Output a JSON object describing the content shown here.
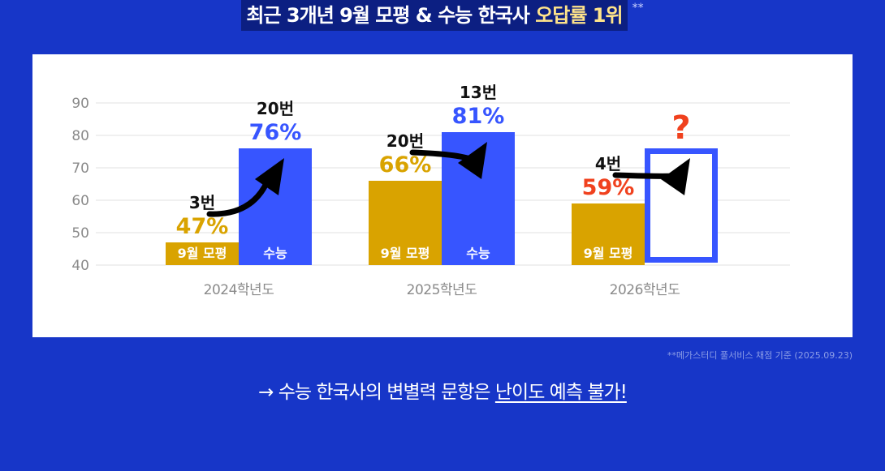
{
  "header": {
    "title_main": "최근 3개년 9월 모평 & 수능 한국사 ",
    "title_highlight": "오답률 1위",
    "footnote_mark": "**"
  },
  "chart_data": {
    "type": "bar",
    "categories": [
      "2024학년도",
      "2025학년도",
      "2026학년도"
    ],
    "series": [
      {
        "name": "9월 모평",
        "color": "#d9a300",
        "values": [
          47,
          66,
          59
        ],
        "question_numbers": [
          "3번",
          "20번",
          "4번"
        ]
      },
      {
        "name": "수능",
        "color": "#3755ff",
        "values": [
          76,
          81,
          null
        ],
        "question_numbers": [
          "20번",
          "13번",
          null
        ]
      }
    ],
    "value_labels": [
      [
        "47%",
        "76%"
      ],
      [
        "66%",
        "81%"
      ],
      [
        "59%",
        "?"
      ]
    ],
    "highlight_color": "#f0411e",
    "yticks": [
      40,
      50,
      60,
      70,
      80,
      90
    ],
    "ylim": [
      40,
      90
    ],
    "grid": true,
    "unknown_label": "?"
  },
  "footnote": "**메가스터디 풀서비스 채점 기준 (2025.09.23)",
  "conclusion": {
    "prefix": "→ 수능 한국사의 변별력 문항은 ",
    "underlined": "난이도 예측 불가!"
  }
}
